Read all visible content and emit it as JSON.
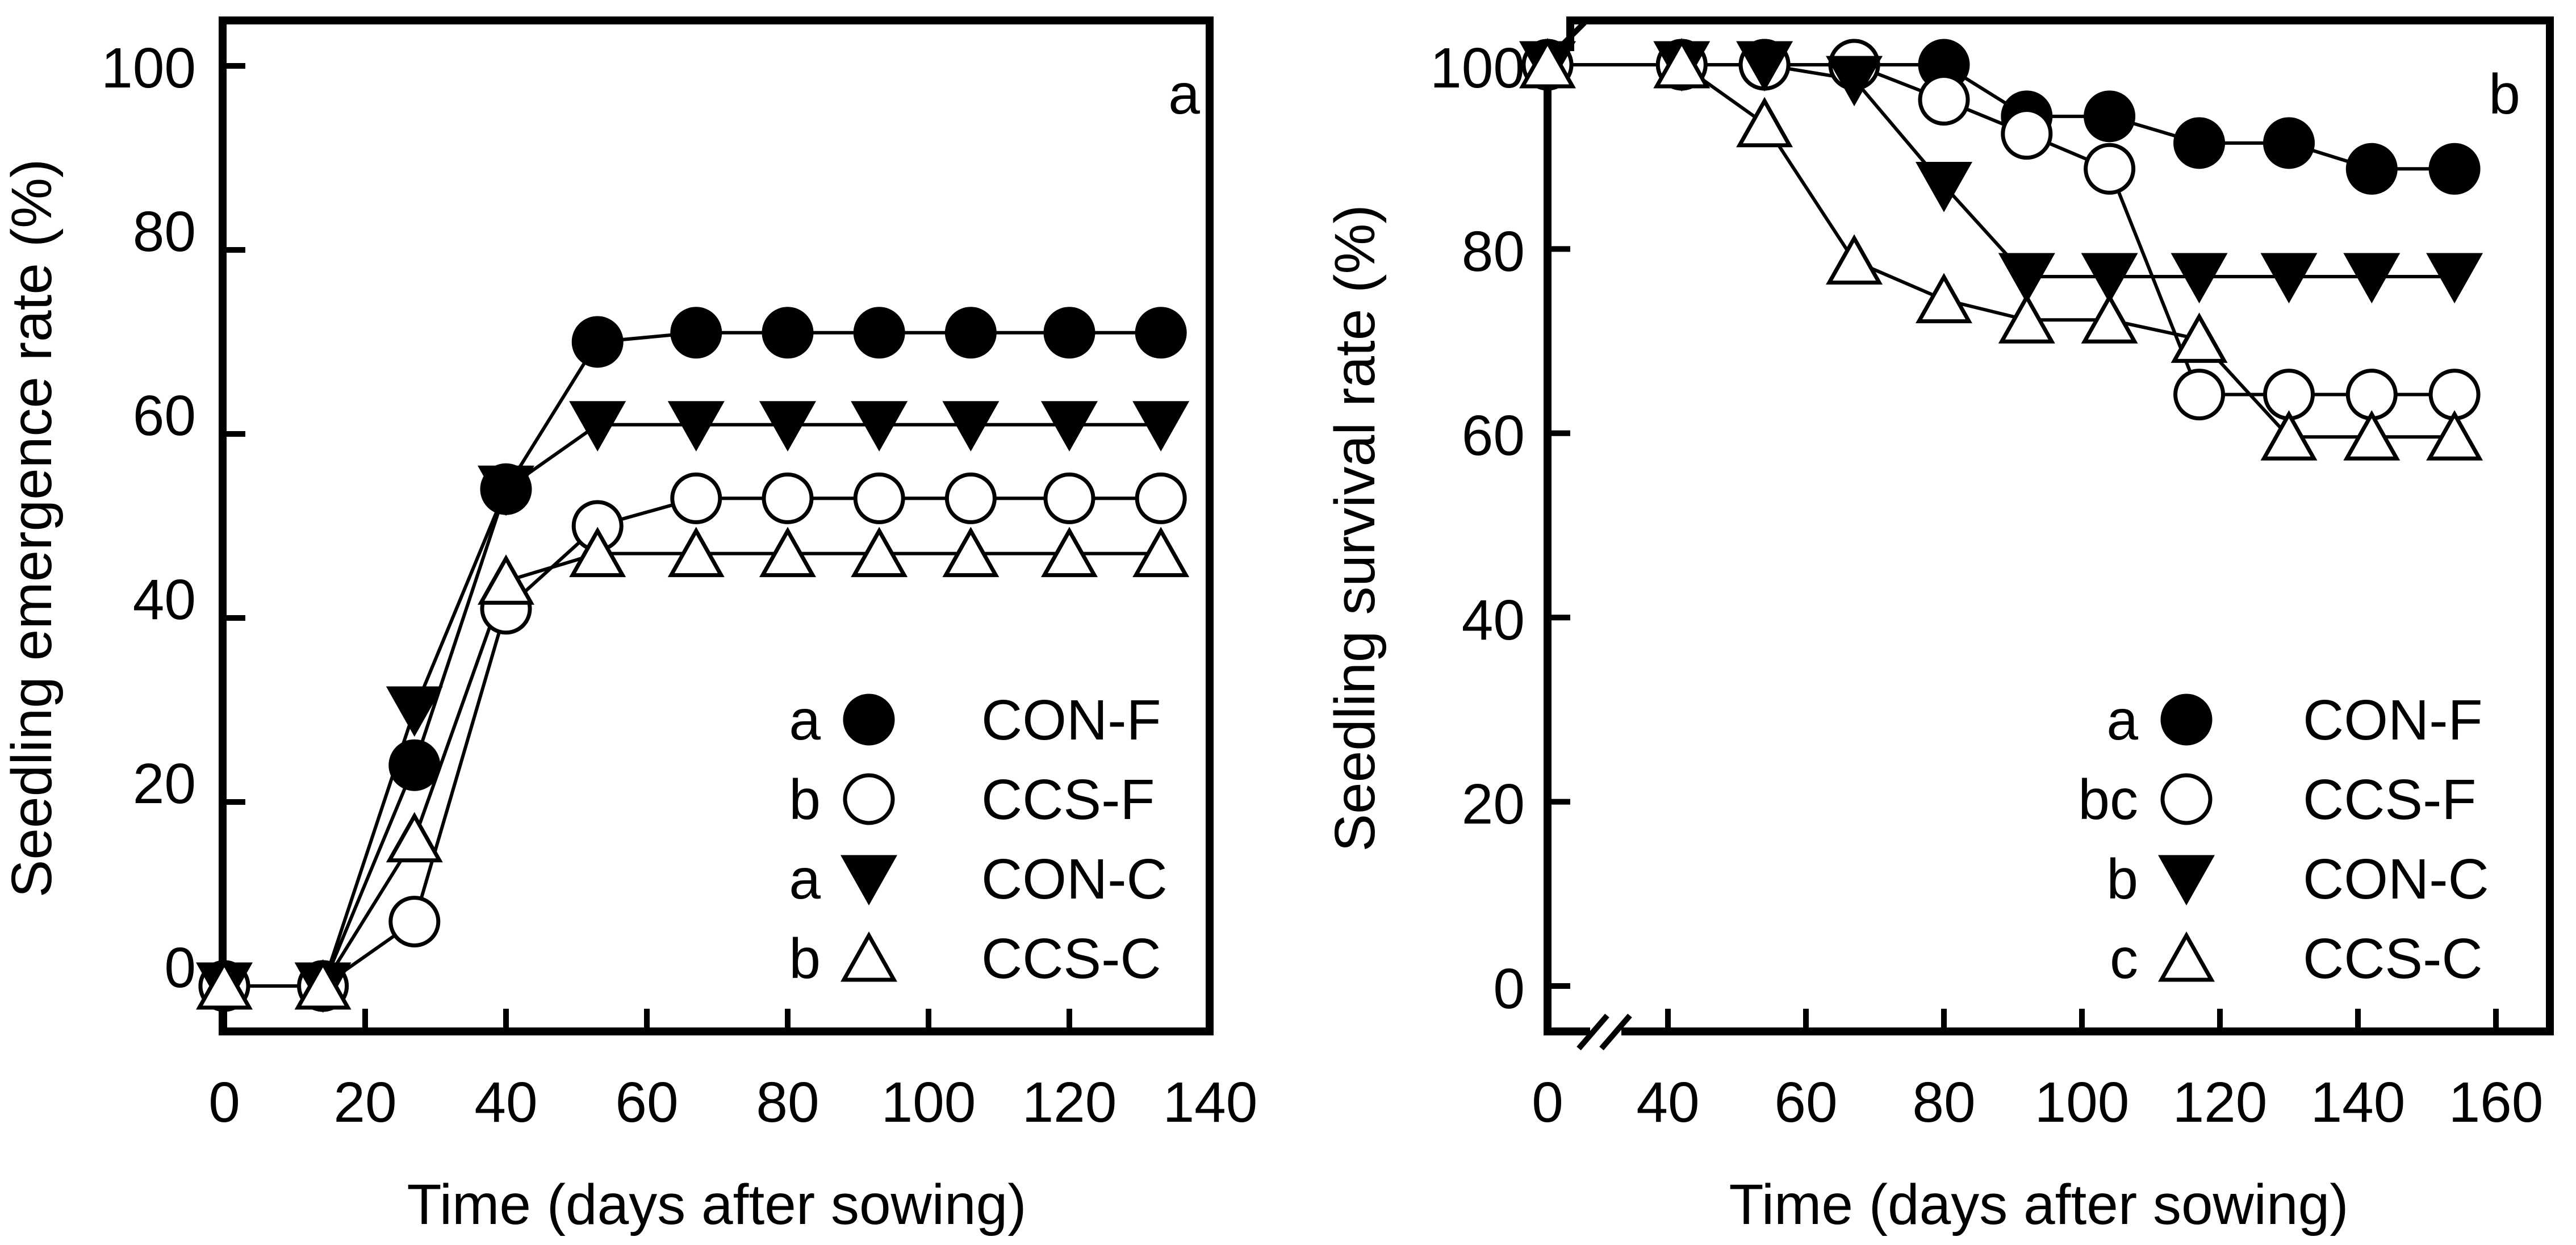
{
  "chart_data": [
    {
      "type": "line",
      "panel_label": "a",
      "xlabel": "Time (days after sowing)",
      "ylabel": "Seedling emergence rate (%)",
      "xlim": [
        0,
        140
      ],
      "ylim": [
        0,
        100
      ],
      "xticks": [
        "0",
        "20",
        "40",
        "60",
        "80",
        "100",
        "120",
        "140"
      ],
      "yticks": [
        "0",
        "20",
        "40",
        "60",
        "80",
        "100"
      ],
      "axis_break": false,
      "grid": false,
      "legend_position": "bottom-right",
      "series": [
        {
          "name": "CON-F",
          "letter": "a",
          "marker": "circle-filled",
          "x": [
            0,
            14,
            27,
            40,
            53,
            67,
            80,
            93,
            106,
            120,
            133
          ],
          "y": [
            0,
            0,
            24,
            54,
            70,
            71,
            71,
            71,
            71,
            71,
            71
          ]
        },
        {
          "name": "CCS-F",
          "letter": "b",
          "marker": "circle-open",
          "x": [
            0,
            14,
            27,
            40,
            53,
            67,
            80,
            93,
            106,
            120,
            133
          ],
          "y": [
            0,
            0,
            7,
            41,
            50,
            53,
            53,
            53,
            53,
            53,
            53
          ]
        },
        {
          "name": "CON-C",
          "letter": "a",
          "marker": "triangle-down-filled",
          "x": [
            0,
            14,
            27,
            40,
            53,
            67,
            80,
            93,
            106,
            120,
            133
          ],
          "y": [
            0,
            0,
            30,
            54,
            61,
            61,
            61,
            61,
            61,
            61,
            61
          ]
        },
        {
          "name": "CCS-C",
          "letter": "b",
          "marker": "triangle-up-open",
          "x": [
            0,
            14,
            27,
            40,
            53,
            67,
            80,
            93,
            106,
            120,
            133
          ],
          "y": [
            0,
            0,
            16,
            44,
            47,
            47,
            47,
            47,
            47,
            47,
            47
          ]
        }
      ]
    },
    {
      "type": "line",
      "panel_label": "b",
      "xlabel": "Time (days after sowing)",
      "ylabel": "Seedling survival rate (%)",
      "xlim": [
        0,
        160
      ],
      "ylim": [
        0,
        100
      ],
      "xticks": [
        "0",
        "40",
        "60",
        "80",
        "100",
        "120",
        "140",
        "160"
      ],
      "yticks": [
        "0",
        "20",
        "40",
        "60",
        "80",
        "100"
      ],
      "axis_break": true,
      "grid": false,
      "legend_position": "bottom-right",
      "series": [
        {
          "name": "CON-F",
          "letter": "a",
          "marker": "circle-filled",
          "x": [
            0,
            42,
            54,
            67,
            80,
            92,
            104,
            117,
            130,
            142,
            154
          ],
          "y": [
            100,
            100,
            100,
            100,
            100,
            94.4,
            94.4,
            91.5,
            91.5,
            88.7,
            88.7
          ]
        },
        {
          "name": "CCS-F",
          "letter": "bc",
          "marker": "circle-open",
          "x": [
            0,
            42,
            54,
            67,
            80,
            92,
            104,
            117,
            130,
            142,
            154
          ],
          "y": [
            100,
            100,
            100,
            100,
            96.2,
            92.5,
            88.7,
            64.2,
            64.2,
            64.2,
            64.2
          ]
        },
        {
          "name": "CON-C",
          "letter": "b",
          "marker": "triangle-down-filled",
          "x": [
            0,
            42,
            54,
            67,
            80,
            92,
            104,
            117,
            130,
            142,
            154
          ],
          "y": [
            100,
            100,
            100,
            98.4,
            86.9,
            77,
            77,
            77,
            77,
            77,
            77
          ]
        },
        {
          "name": "CCS-C",
          "letter": "c",
          "marker": "triangle-up-open",
          "x": [
            0,
            42,
            54,
            67,
            80,
            92,
            104,
            117,
            130,
            142,
            154
          ],
          "y": [
            100,
            100,
            93.6,
            78.7,
            74.5,
            72.3,
            72.3,
            70.2,
            59.6,
            59.6,
            59.6
          ]
        }
      ]
    }
  ]
}
